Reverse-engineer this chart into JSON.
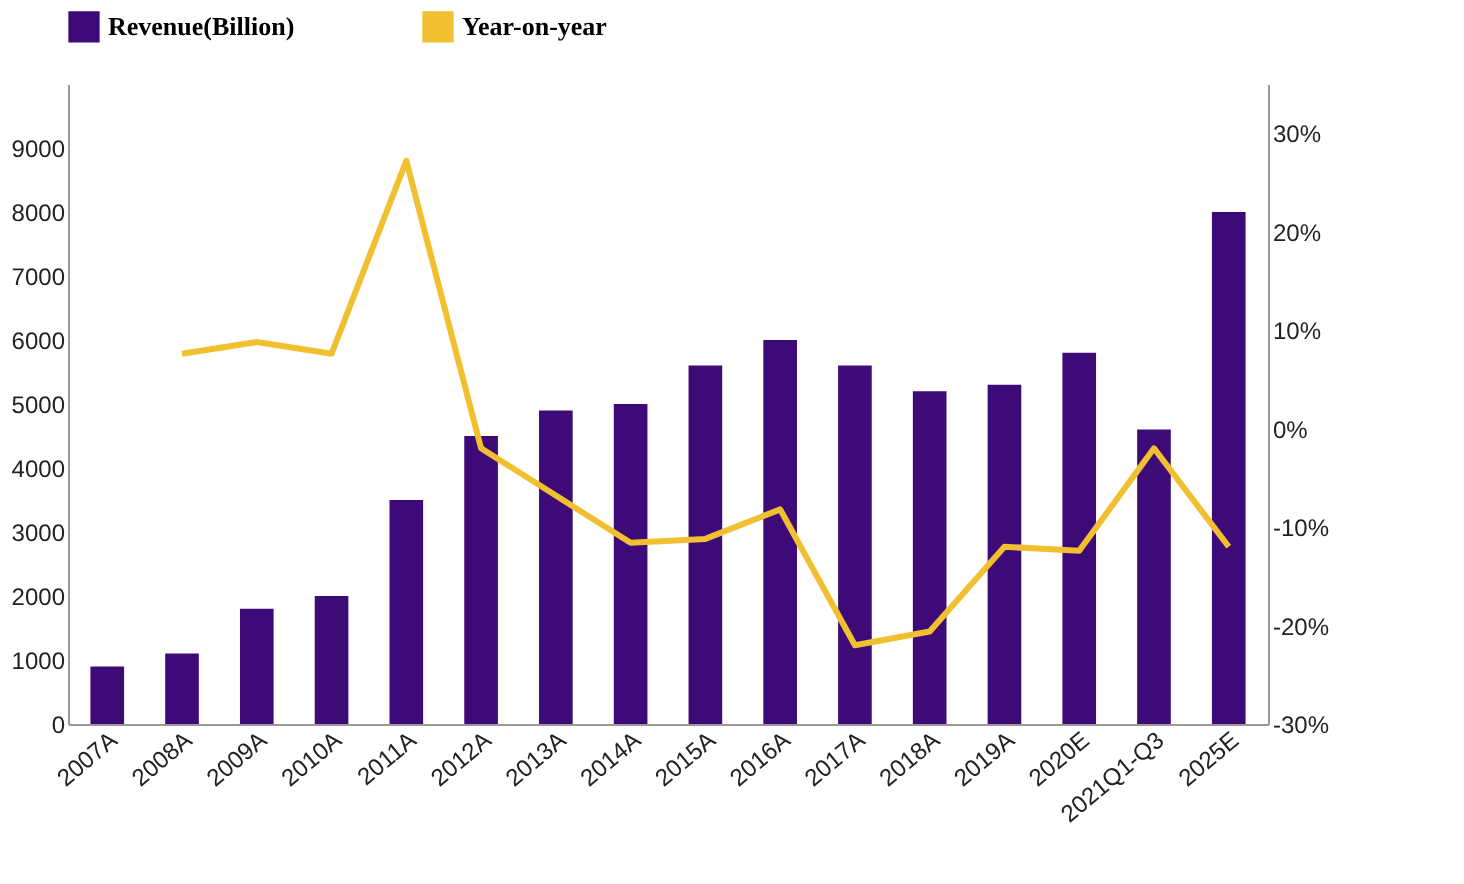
{
  "chart_data": {
    "type": "bar",
    "categories": [
      "2007A",
      "2008A",
      "2009A",
      "2010A",
      "2011A",
      "2012A",
      "2013A",
      "2014A",
      "2015A",
      "2016A",
      "2017A",
      "2018A",
      "2019A",
      "2020E",
      "2021Q1-Q3",
      "2025E"
    ],
    "series": [
      {
        "name": "Revenue(Billion)",
        "color": "#3d0a78",
        "values": [
          900,
          1100,
          1800,
          2000,
          3500,
          4500,
          4900,
          5000,
          5600,
          6000,
          5600,
          5200,
          5300,
          5800,
          4600,
          8000
        ]
      },
      {
        "name": "Year-on-year",
        "type": "line",
        "axis": "y2",
        "color": "#f0c030",
        "values": [
          null,
          7.6,
          8.8,
          7.6,
          27.2,
          -2,
          -6.8,
          -11.6,
          -11.2,
          -8.2,
          -22,
          -20.6,
          -12,
          -12.4,
          -2,
          -12
        ]
      }
    ],
    "ylim": [
      0,
      10000
    ],
    "yticks": [
      0,
      1000,
      2000,
      3000,
      4000,
      5000,
      6000,
      7000,
      8000,
      9000
    ],
    "y2lim": [
      -30,
      35
    ],
    "y2ticks": [
      {
        "value": -30,
        "label": "-30%"
      },
      {
        "value": -20,
        "label": "-20%"
      },
      {
        "value": -10,
        "label": "-10%"
      },
      {
        "value": 0,
        "label": "0%"
      },
      {
        "value": 10,
        "label": "10%"
      },
      {
        "value": 20,
        "label": "20%"
      },
      {
        "value": 30,
        "label": "30%"
      }
    ],
    "grid": false,
    "legend": "top"
  }
}
